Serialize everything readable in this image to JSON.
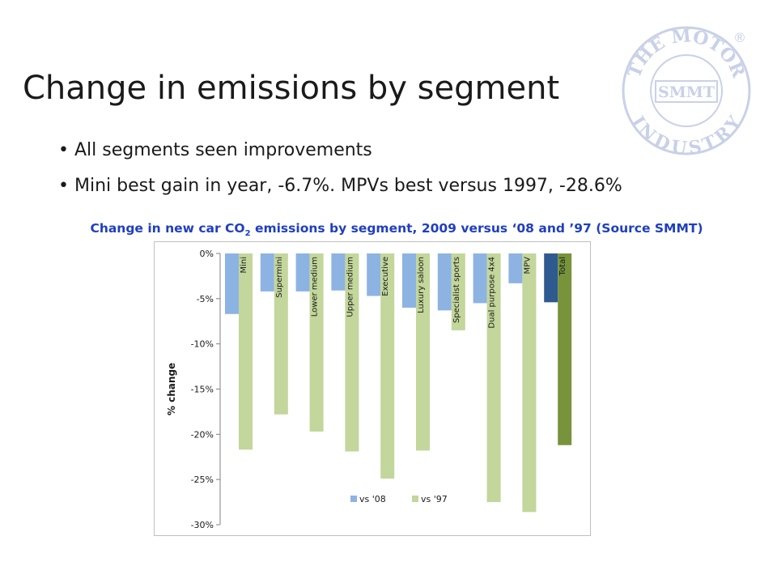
{
  "slide": {
    "title": "Change in emissions by segment",
    "bullets": [
      "All segments seen improvements",
      "Mini best gain in year, -6.7%. MPVs best versus 1997, -28.6%"
    ],
    "chart_caption_pre": "Change in new car CO",
    "chart_caption_sub": "2",
    "chart_caption_post": " emissions by segment, 2009 versus ‘08 and ’97 (Source SMMT)"
  },
  "logo": {
    "top_text": "THE MOTOR",
    "bottom_text": "INDUSTRY",
    "center_text": "SMMT",
    "mark": "®",
    "color": "#c9d1e8"
  },
  "chart_data": {
    "type": "bar",
    "categories": [
      "Mini",
      "Supermini",
      "Lower medium",
      "Upper medium",
      "Executive",
      "Luxury saloon",
      "Specialist sports",
      "Dual purpose 4x4",
      "MPV",
      "Total"
    ],
    "series": [
      {
        "name": "vs '08",
        "values": [
          -6.7,
          -4.2,
          -4.2,
          -4.1,
          -4.7,
          -6.0,
          -6.3,
          -5.5,
          -3.3,
          -5.4
        ],
        "color": "#8db3e2",
        "highlight_color": "#2f5a8f"
      },
      {
        "name": "vs '97",
        "values": [
          -21.7,
          -17.8,
          -19.7,
          -21.9,
          -24.9,
          -21.8,
          -8.5,
          -27.5,
          -28.6,
          -21.2
        ],
        "color": "#c3d69b",
        "highlight_color": "#77933c"
      }
    ],
    "highlight_category": "Total",
    "ylabel": "% change",
    "ylim": [
      -30,
      0
    ],
    "yticks": [
      0,
      -5,
      -10,
      -15,
      -20,
      -25,
      -30
    ],
    "ytick_labels": [
      "0%",
      "-5%",
      "-10%",
      "-15%",
      "-20%",
      "-25%",
      "-30%"
    ],
    "grid": false,
    "legend_position": "bottom-inside"
  }
}
